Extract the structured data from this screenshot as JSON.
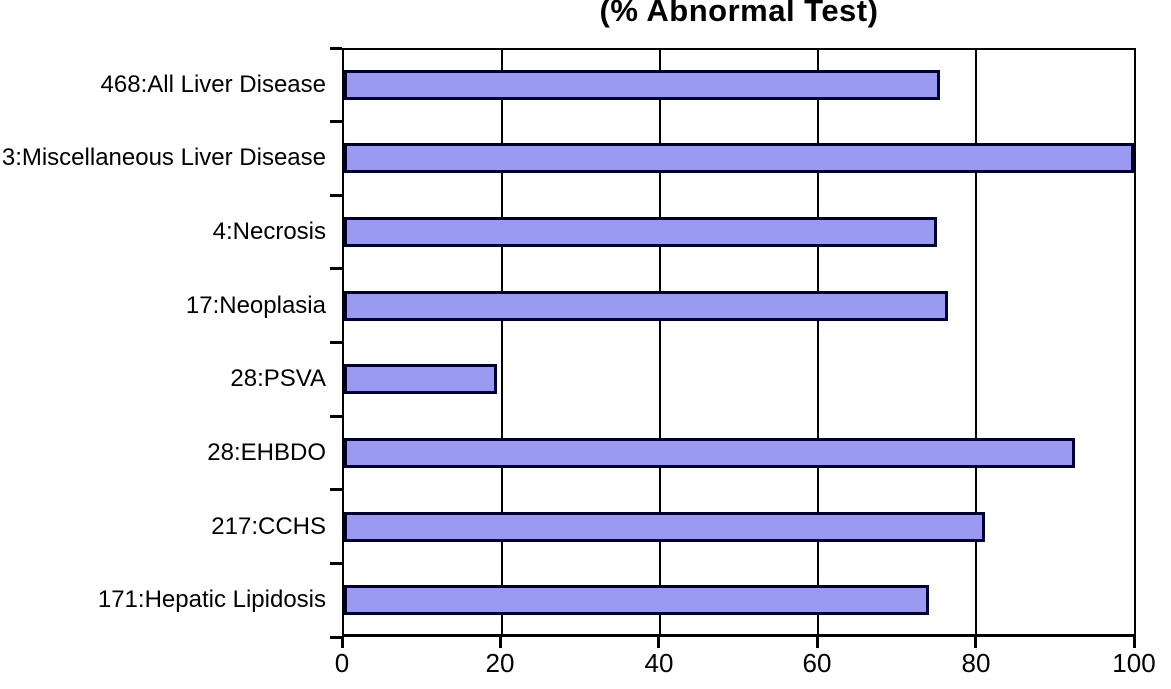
{
  "chart_data": {
    "type": "bar",
    "orientation": "horizontal",
    "title": "(% Abnormal Test)",
    "title_note": "top of title text is clipped by the image edge",
    "categories": [
      "468:All Liver Disease",
      "3:Miscellaneous Liver Disease",
      "4:Necrosis",
      "17:Neoplasia",
      "28:PSVA",
      "28:EHBDO",
      "217:CCHS",
      "171:Hepatic Lipidosis"
    ],
    "values": [
      75.5,
      100,
      75,
      76.4,
      19.4,
      92.5,
      81.2,
      74
    ],
    "xlabel": "",
    "ylabel": "",
    "xlim": [
      0,
      100
    ],
    "x_ticks": [
      0,
      20,
      40,
      60,
      80,
      100
    ],
    "grid": "vertical gridlines at 20, 40, 60, 80",
    "legend_position": "none",
    "colors": {
      "bar_fill": "#9999f2",
      "bar_border": "#000030",
      "axis": "#000000",
      "background": "#ffffff"
    }
  }
}
